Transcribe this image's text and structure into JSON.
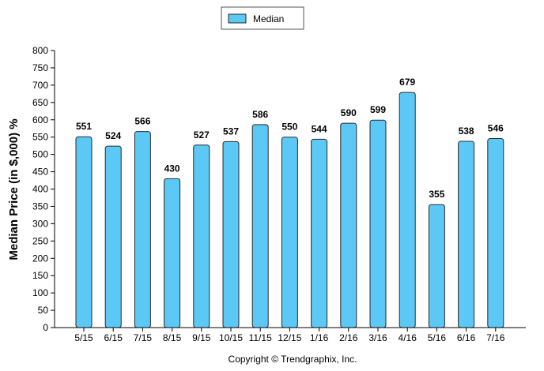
{
  "chart_data": {
    "type": "bar",
    "categories": [
      "5/15",
      "6/15",
      "7/15",
      "8/15",
      "9/15",
      "10/15",
      "11/15",
      "12/15",
      "1/16",
      "2/16",
      "3/16",
      "4/16",
      "5/16",
      "6/16",
      "7/16"
    ],
    "series": [
      {
        "name": "Median",
        "values": [
          551,
          524,
          566,
          430,
          527,
          537,
          586,
          550,
          544,
          590,
          599,
          679,
          355,
          538,
          546
        ]
      }
    ],
    "data_labels": [
      "551",
      "524",
      "566",
      "430",
      "527",
      "537",
      "586",
      "550",
      "544",
      "590",
      "599",
      "679",
      "355",
      "538",
      "546"
    ],
    "ylabel": "Median Price (in $,000) %",
    "xlabel": "",
    "ylim": [
      0,
      800
    ],
    "ytick_step": 50,
    "yticks": [
      "0",
      "50",
      "100",
      "150",
      "200",
      "250",
      "300",
      "350",
      "400",
      "450",
      "500",
      "550",
      "600",
      "650",
      "700",
      "750",
      "800"
    ],
    "legend": {
      "label": "Median",
      "placement": "top-center"
    },
    "grid": false,
    "colors": {
      "bar_fill": "#5cc8f5",
      "bar_stroke": "#2a2a2a",
      "legend_border": "#555555"
    }
  },
  "footer": {
    "copyright": "Copyright © Trendgraphix, Inc."
  }
}
